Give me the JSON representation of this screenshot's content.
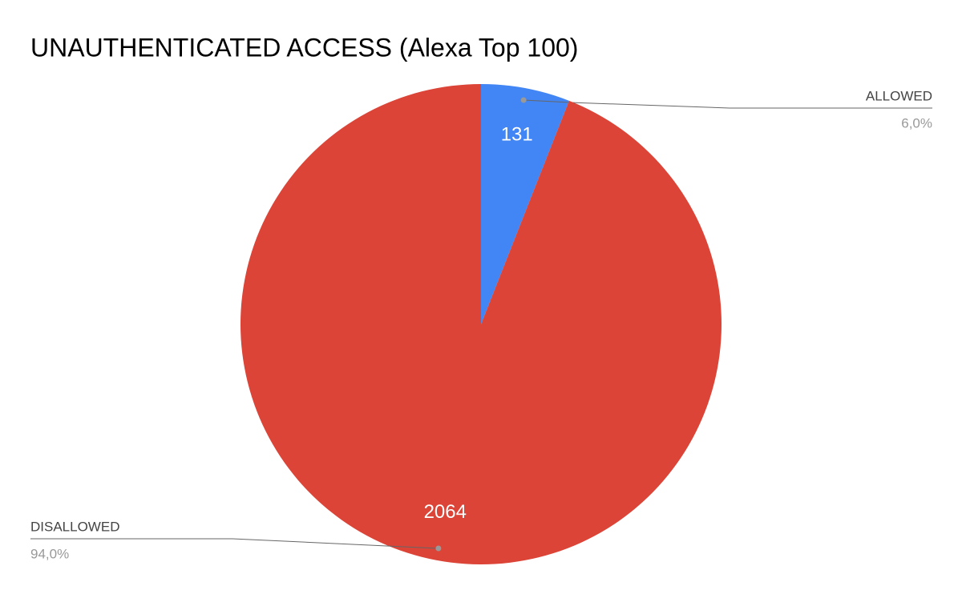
{
  "chart_data": {
    "type": "pie",
    "title": "UNAUTHENTICATED ACCESS (Alexa Top 100)",
    "categories": [
      "ALLOWED",
      "DISALLOWED"
    ],
    "values": [
      131,
      2064
    ],
    "colors": [
      "#4285f4",
      "#db4437"
    ],
    "percent_labels": [
      "6,0%",
      "94,0%"
    ]
  }
}
